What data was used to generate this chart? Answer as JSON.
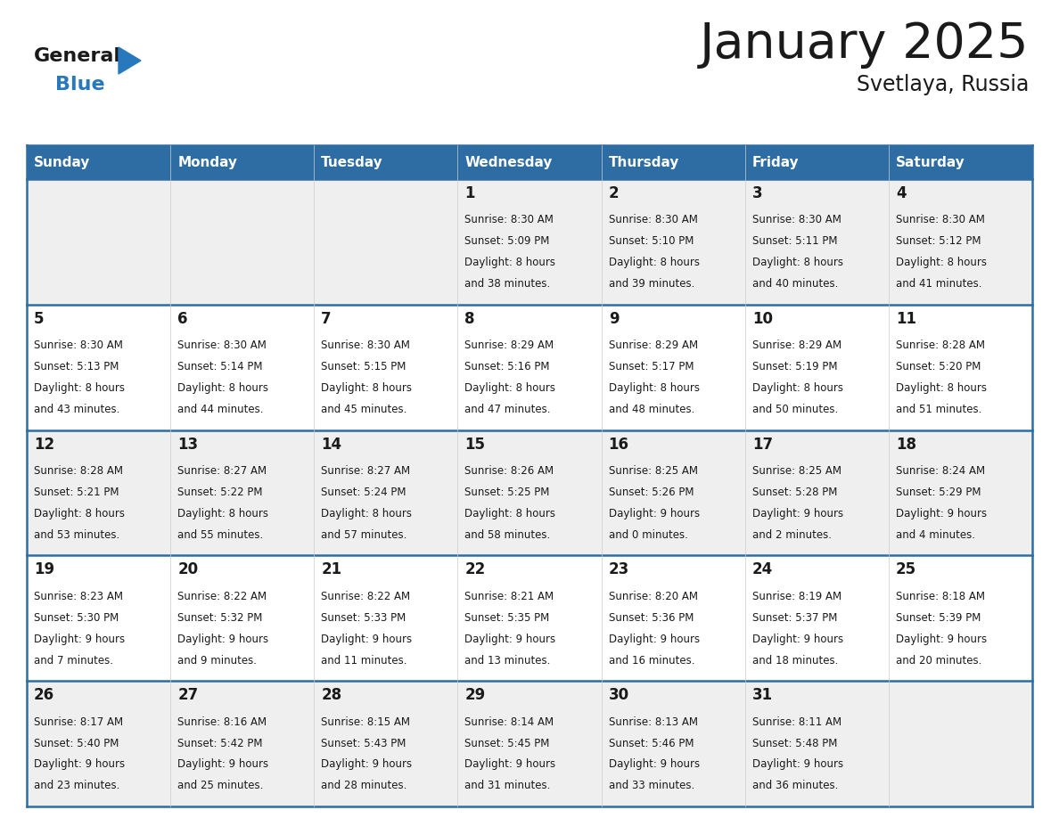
{
  "title": "January 2025",
  "subtitle": "Svetlaya, Russia",
  "days_of_week": [
    "Sunday",
    "Monday",
    "Tuesday",
    "Wednesday",
    "Thursday",
    "Friday",
    "Saturday"
  ],
  "header_bg": "#2E6DA4",
  "header_text": "#FFFFFF",
  "cell_bg_light": "#EFEFEF",
  "cell_bg_white": "#FFFFFF",
  "row_line_color": "#2E6DA4",
  "col_line_color": "#CCCCCC",
  "text_color": "#1a1a1a",
  "logo_general_color": "#1a1a1a",
  "logo_blue_color": "#2878BE",
  "title_fontsize": 40,
  "subtitle_fontsize": 17,
  "dow_fontsize": 11,
  "day_num_fontsize": 12,
  "cell_text_fontsize": 8.5,
  "weeks": [
    [
      {
        "day": null,
        "info": null
      },
      {
        "day": null,
        "info": null
      },
      {
        "day": null,
        "info": null
      },
      {
        "day": 1,
        "info": {
          "sunrise": "8:30 AM",
          "sunset": "5:09 PM",
          "daylight": "8 hours and 38 minutes."
        }
      },
      {
        "day": 2,
        "info": {
          "sunrise": "8:30 AM",
          "sunset": "5:10 PM",
          "daylight": "8 hours and 39 minutes."
        }
      },
      {
        "day": 3,
        "info": {
          "sunrise": "8:30 AM",
          "sunset": "5:11 PM",
          "daylight": "8 hours and 40 minutes."
        }
      },
      {
        "day": 4,
        "info": {
          "sunrise": "8:30 AM",
          "sunset": "5:12 PM",
          "daylight": "8 hours and 41 minutes."
        }
      }
    ],
    [
      {
        "day": 5,
        "info": {
          "sunrise": "8:30 AM",
          "sunset": "5:13 PM",
          "daylight": "8 hours and 43 minutes."
        }
      },
      {
        "day": 6,
        "info": {
          "sunrise": "8:30 AM",
          "sunset": "5:14 PM",
          "daylight": "8 hours and 44 minutes."
        }
      },
      {
        "day": 7,
        "info": {
          "sunrise": "8:30 AM",
          "sunset": "5:15 PM",
          "daylight": "8 hours and 45 minutes."
        }
      },
      {
        "day": 8,
        "info": {
          "sunrise": "8:29 AM",
          "sunset": "5:16 PM",
          "daylight": "8 hours and 47 minutes."
        }
      },
      {
        "day": 9,
        "info": {
          "sunrise": "8:29 AM",
          "sunset": "5:17 PM",
          "daylight": "8 hours and 48 minutes."
        }
      },
      {
        "day": 10,
        "info": {
          "sunrise": "8:29 AM",
          "sunset": "5:19 PM",
          "daylight": "8 hours and 50 minutes."
        }
      },
      {
        "day": 11,
        "info": {
          "sunrise": "8:28 AM",
          "sunset": "5:20 PM",
          "daylight": "8 hours and 51 minutes."
        }
      }
    ],
    [
      {
        "day": 12,
        "info": {
          "sunrise": "8:28 AM",
          "sunset": "5:21 PM",
          "daylight": "8 hours and 53 minutes."
        }
      },
      {
        "day": 13,
        "info": {
          "sunrise": "8:27 AM",
          "sunset": "5:22 PM",
          "daylight": "8 hours and 55 minutes."
        }
      },
      {
        "day": 14,
        "info": {
          "sunrise": "8:27 AM",
          "sunset": "5:24 PM",
          "daylight": "8 hours and 57 minutes."
        }
      },
      {
        "day": 15,
        "info": {
          "sunrise": "8:26 AM",
          "sunset": "5:25 PM",
          "daylight": "8 hours and 58 minutes."
        }
      },
      {
        "day": 16,
        "info": {
          "sunrise": "8:25 AM",
          "sunset": "5:26 PM",
          "daylight": "9 hours and 0 minutes."
        }
      },
      {
        "day": 17,
        "info": {
          "sunrise": "8:25 AM",
          "sunset": "5:28 PM",
          "daylight": "9 hours and 2 minutes."
        }
      },
      {
        "day": 18,
        "info": {
          "sunrise": "8:24 AM",
          "sunset": "5:29 PM",
          "daylight": "9 hours and 4 minutes."
        }
      }
    ],
    [
      {
        "day": 19,
        "info": {
          "sunrise": "8:23 AM",
          "sunset": "5:30 PM",
          "daylight": "9 hours and 7 minutes."
        }
      },
      {
        "day": 20,
        "info": {
          "sunrise": "8:22 AM",
          "sunset": "5:32 PM",
          "daylight": "9 hours and 9 minutes."
        }
      },
      {
        "day": 21,
        "info": {
          "sunrise": "8:22 AM",
          "sunset": "5:33 PM",
          "daylight": "9 hours and 11 minutes."
        }
      },
      {
        "day": 22,
        "info": {
          "sunrise": "8:21 AM",
          "sunset": "5:35 PM",
          "daylight": "9 hours and 13 minutes."
        }
      },
      {
        "day": 23,
        "info": {
          "sunrise": "8:20 AM",
          "sunset": "5:36 PM",
          "daylight": "9 hours and 16 minutes."
        }
      },
      {
        "day": 24,
        "info": {
          "sunrise": "8:19 AM",
          "sunset": "5:37 PM",
          "daylight": "9 hours and 18 minutes."
        }
      },
      {
        "day": 25,
        "info": {
          "sunrise": "8:18 AM",
          "sunset": "5:39 PM",
          "daylight": "9 hours and 20 minutes."
        }
      }
    ],
    [
      {
        "day": 26,
        "info": {
          "sunrise": "8:17 AM",
          "sunset": "5:40 PM",
          "daylight": "9 hours and 23 minutes."
        }
      },
      {
        "day": 27,
        "info": {
          "sunrise": "8:16 AM",
          "sunset": "5:42 PM",
          "daylight": "9 hours and 25 minutes."
        }
      },
      {
        "day": 28,
        "info": {
          "sunrise": "8:15 AM",
          "sunset": "5:43 PM",
          "daylight": "9 hours and 28 minutes."
        }
      },
      {
        "day": 29,
        "info": {
          "sunrise": "8:14 AM",
          "sunset": "5:45 PM",
          "daylight": "9 hours and 31 minutes."
        }
      },
      {
        "day": 30,
        "info": {
          "sunrise": "8:13 AM",
          "sunset": "5:46 PM",
          "daylight": "9 hours and 33 minutes."
        }
      },
      {
        "day": 31,
        "info": {
          "sunrise": "8:11 AM",
          "sunset": "5:48 PM",
          "daylight": "9 hours and 36 minutes."
        }
      },
      {
        "day": null,
        "info": null
      }
    ]
  ]
}
